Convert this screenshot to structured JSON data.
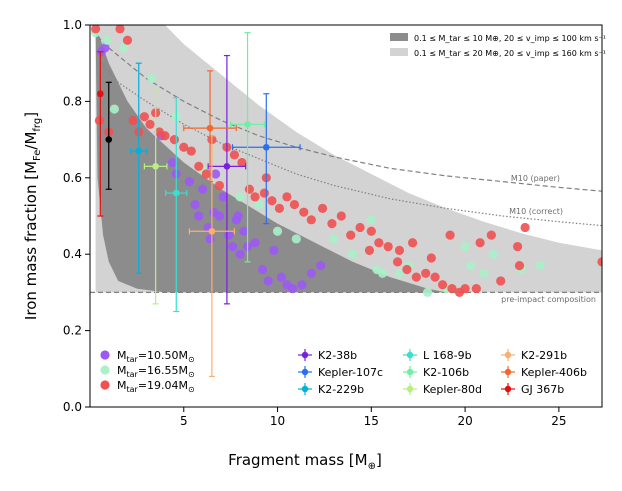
{
  "chart_data": {
    "type": "scatter",
    "xlabel": "Fragment mass [M",
    "xlabel_sub": "⊕",
    "xlabel_end": "]",
    "ylabel": "Iron mass fraction [M",
    "ylabel_sub1": "Fe",
    "ylabel_mid": "/M",
    "ylabel_sub2": "frg",
    "ylabel_end": "]",
    "xlim": [
      0,
      27.3
    ],
    "ylim": [
      0.0,
      1.0
    ],
    "xticks": [
      5,
      10,
      15,
      20,
      25
    ],
    "yticks": [
      0.0,
      0.2,
      0.4,
      0.6,
      0.8,
      1.0
    ],
    "regions": [
      {
        "label": "0.1 ≤ M_tar ≤ 10 M⊕, 20 ≤ v_imp ≤ 100 km s⁻¹",
        "color": "#8c8c8c",
        "upper": [
          [
            0.3,
            0.99
          ],
          [
            0.5,
            0.97
          ],
          [
            1,
            0.9
          ],
          [
            2,
            0.8
          ],
          [
            3,
            0.73
          ],
          [
            5,
            0.64
          ],
          [
            7,
            0.57
          ],
          [
            10,
            0.48
          ],
          [
            12,
            0.43
          ],
          [
            14,
            0.38
          ],
          [
            16,
            0.34
          ],
          [
            18,
            0.31
          ],
          [
            19,
            0.3
          ]
        ],
        "lower": [
          [
            0.3,
            0.98
          ],
          [
            0.4,
            0.6
          ],
          [
            0.7,
            0.45
          ],
          [
            1,
            0.38
          ],
          [
            1.5,
            0.33
          ],
          [
            2.5,
            0.31
          ],
          [
            4,
            0.3
          ],
          [
            19,
            0.3
          ]
        ]
      },
      {
        "label": "0.1 ≤ M_tar ≤ 20 M⊕, 20 ≤ v_imp ≤ 160 km s⁻¹",
        "color": "#d3d3d3",
        "upper": [
          [
            0.3,
            1.0
          ],
          [
            4,
            1.0
          ],
          [
            5,
            0.95
          ],
          [
            7,
            0.87
          ],
          [
            9,
            0.79
          ],
          [
            11,
            0.72
          ],
          [
            13,
            0.66
          ],
          [
            15,
            0.61
          ],
          [
            17,
            0.56
          ],
          [
            19,
            0.52
          ],
          [
            21,
            0.485
          ],
          [
            23,
            0.455
          ],
          [
            25,
            0.43
          ],
          [
            27.3,
            0.41
          ]
        ],
        "lower": [
          [
            0.3,
            0.3
          ],
          [
            27.3,
            0.3
          ]
        ]
      }
    ],
    "curves": [
      {
        "label": "M10 (paper)",
        "style": "dashed",
        "points": [
          [
            0.4,
            0.97
          ],
          [
            1,
            0.94
          ],
          [
            2,
            0.9
          ],
          [
            3,
            0.86
          ],
          [
            5,
            0.8
          ],
          [
            7,
            0.75
          ],
          [
            9,
            0.71
          ],
          [
            11,
            0.68
          ],
          [
            13,
            0.655
          ],
          [
            16,
            0.625
          ],
          [
            19,
            0.605
          ],
          [
            22,
            0.59
          ],
          [
            25,
            0.575
          ],
          [
            27.3,
            0.565
          ]
        ]
      },
      {
        "label": "M10 (correct)",
        "style": "dotted",
        "points": [
          [
            0.6,
            0.9
          ],
          [
            1.5,
            0.85
          ],
          [
            3,
            0.8
          ],
          [
            5,
            0.74
          ],
          [
            7,
            0.69
          ],
          [
            9,
            0.65
          ],
          [
            11,
            0.61
          ],
          [
            13,
            0.58
          ],
          [
            16,
            0.545
          ],
          [
            19,
            0.52
          ],
          [
            22,
            0.5
          ],
          [
            25,
            0.485
          ],
          [
            27.3,
            0.475
          ]
        ]
      },
      {
        "label": "pre-impact composition",
        "style": "dashed",
        "points": [
          [
            0,
            0.3
          ],
          [
            27.3,
            0.3
          ]
        ]
      }
    ],
    "scatter_series": [
      {
        "name": "M_tar=10.50M⊙",
        "label_base": "M",
        "label_sub": "tar",
        "label_val": "=10.50M",
        "label_unit": "⊙",
        "color": "#9b59f5",
        "points": [
          [
            3.8,
            0.71
          ],
          [
            4.4,
            0.64
          ],
          [
            4.6,
            0.61
          ],
          [
            5.3,
            0.59
          ],
          [
            5.6,
            0.53
          ],
          [
            5.8,
            0.5
          ],
          [
            6.0,
            0.57
          ],
          [
            6.3,
            0.47
          ],
          [
            6.4,
            0.44
          ],
          [
            6.6,
            0.51
          ],
          [
            6.9,
            0.5
          ],
          [
            7.1,
            0.55
          ],
          [
            7.4,
            0.45
          ],
          [
            7.6,
            0.42
          ],
          [
            7.8,
            0.49
          ],
          [
            8.0,
            0.4
          ],
          [
            8.2,
            0.46
          ],
          [
            8.4,
            0.42
          ],
          [
            8.8,
            0.43
          ],
          [
            9.2,
            0.36
          ],
          [
            9.5,
            0.33
          ],
          [
            9.8,
            0.41
          ],
          [
            10.2,
            0.34
          ],
          [
            10.5,
            0.32
          ],
          [
            10.8,
            0.31
          ],
          [
            11.3,
            0.32
          ],
          [
            11.8,
            0.35
          ],
          [
            12.3,
            0.37
          ],
          [
            6.7,
            0.61
          ],
          [
            7.9,
            0.5
          ],
          [
            0.6,
            0.93
          ],
          [
            0.8,
            0.94
          ]
        ]
      },
      {
        "name": "M_tar=16.55M⊙",
        "label_base": "M",
        "label_sub": "tar",
        "label_val": "=16.55M",
        "label_unit": "⊙",
        "color": "#aaf0c8",
        "points": [
          [
            0.3,
            0.98
          ],
          [
            0.9,
            0.96
          ],
          [
            1.3,
            0.78
          ],
          [
            1.8,
            0.94
          ],
          [
            3.3,
            0.86
          ],
          [
            4.6,
            0.76
          ],
          [
            6.0,
            0.62
          ],
          [
            8.0,
            0.55
          ],
          [
            9.0,
            0.53
          ],
          [
            10.0,
            0.46
          ],
          [
            11.0,
            0.44
          ],
          [
            13.0,
            0.44
          ],
          [
            14.0,
            0.4
          ],
          [
            15.0,
            0.49
          ],
          [
            15.3,
            0.36
          ],
          [
            15.6,
            0.35
          ],
          [
            16.5,
            0.35
          ],
          [
            17.0,
            0.37
          ],
          [
            18.0,
            0.3
          ],
          [
            19.0,
            0.31
          ],
          [
            20.0,
            0.42
          ],
          [
            20.3,
            0.37
          ],
          [
            21.0,
            0.35
          ],
          [
            21.5,
            0.4
          ],
          [
            23.0,
            0.36
          ],
          [
            24.0,
            0.37
          ]
        ]
      },
      {
        "name": "M_tar=19.04M⊙",
        "label_base": "M",
        "label_sub": "tar",
        "label_val": "=19.04M",
        "label_unit": "⊙",
        "color": "#f05050",
        "points": [
          [
            0.3,
            0.99
          ],
          [
            0.5,
            0.75
          ],
          [
            1.0,
            0.72
          ],
          [
            1.6,
            0.99
          ],
          [
            2.0,
            0.96
          ],
          [
            2.3,
            0.75
          ],
          [
            2.6,
            0.72
          ],
          [
            2.9,
            0.76
          ],
          [
            3.2,
            0.74
          ],
          [
            3.5,
            0.77
          ],
          [
            3.7,
            0.72
          ],
          [
            4.0,
            0.71
          ],
          [
            4.5,
            0.7
          ],
          [
            5.0,
            0.68
          ],
          [
            5.4,
            0.67
          ],
          [
            5.8,
            0.63
          ],
          [
            6.2,
            0.61
          ],
          [
            6.5,
            0.7
          ],
          [
            6.9,
            0.58
          ],
          [
            7.3,
            0.68
          ],
          [
            7.7,
            0.66
          ],
          [
            8.1,
            0.64
          ],
          [
            8.5,
            0.57
          ],
          [
            8.8,
            0.55
          ],
          [
            9.3,
            0.56
          ],
          [
            9.7,
            0.54
          ],
          [
            10.1,
            0.52
          ],
          [
            10.5,
            0.55
          ],
          [
            10.9,
            0.53
          ],
          [
            11.4,
            0.51
          ],
          [
            11.8,
            0.49
          ],
          [
            12.4,
            0.52
          ],
          [
            12.9,
            0.48
          ],
          [
            13.4,
            0.5
          ],
          [
            13.9,
            0.45
          ],
          [
            14.4,
            0.47
          ],
          [
            14.9,
            0.41
          ],
          [
            15.4,
            0.43
          ],
          [
            15.9,
            0.42
          ],
          [
            16.4,
            0.38
          ],
          [
            16.9,
            0.36
          ],
          [
            17.4,
            0.34
          ],
          [
            17.9,
            0.35
          ],
          [
            18.4,
            0.34
          ],
          [
            18.8,
            0.32
          ],
          [
            19.3,
            0.31
          ],
          [
            19.7,
            0.3
          ],
          [
            20.0,
            0.31
          ],
          [
            20.6,
            0.31
          ],
          [
            21.4,
            0.45
          ],
          [
            21.9,
            0.33
          ],
          [
            22.8,
            0.42
          ],
          [
            22.9,
            0.37
          ],
          [
            23.2,
            0.47
          ],
          [
            27.3,
            0.38
          ],
          [
            16.5,
            0.41
          ],
          [
            17.2,
            0.43
          ],
          [
            18.2,
            0.39
          ],
          [
            19.2,
            0.45
          ],
          [
            20.8,
            0.43
          ],
          [
            9.4,
            0.6
          ],
          [
            15.0,
            0.46
          ]
        ]
      }
    ],
    "planets": [
      {
        "name": "K2-38b",
        "color": "#7a1fe0",
        "x": 7.3,
        "y": 0.63,
        "xerr": 1.0,
        "yerr_lo": 0.36,
        "yerr_hi": 0.29
      },
      {
        "name": "Kepler-107c",
        "color": "#2a6fef",
        "x": 9.4,
        "y": 0.68,
        "xerr": 1.8,
        "yerr_lo": 0.2,
        "yerr_hi": 0.14
      },
      {
        "name": "K2-229b",
        "color": "#00b0e0",
        "x": 2.6,
        "y": 0.67,
        "xerr": 0.43,
        "yerr_lo": 0.32,
        "yerr_hi": 0.23
      },
      {
        "name": "L 168-9b",
        "color": "#38e0d0",
        "x": 4.6,
        "y": 0.56,
        "xerr": 0.56,
        "yerr_lo": 0.31,
        "yerr_hi": 0.25
      },
      {
        "name": "K2-106b",
        "color": "#6ef0a0",
        "x": 8.4,
        "y": 0.74,
        "xerr": 0.9,
        "yerr_lo": 0.36,
        "yerr_hi": 0.24
      },
      {
        "name": "Kepler-80d",
        "color": "#b8f080",
        "x": 3.5,
        "y": 0.63,
        "xerr": 0.6,
        "yerr_lo": 0.36,
        "yerr_hi": 0.2
      },
      {
        "name": "K2-291b",
        "color": "#f8b070",
        "x": 6.5,
        "y": 0.46,
        "xerr": 1.2,
        "yerr_lo": 0.38,
        "yerr_hi": 0.25
      },
      {
        "name": "Kepler-406b",
        "color": "#f06830",
        "x": 6.4,
        "y": 0.73,
        "xerr": 1.4,
        "yerr_lo": 0.14,
        "yerr_hi": 0.15
      },
      {
        "name": "GJ 367b",
        "color": "#e01010",
        "x": 0.55,
        "y": 0.82,
        "xerr": 0.08,
        "yerr_lo": 0.32,
        "yerr_hi": 0.11
      },
      {
        "name": "",
        "color": "#000000",
        "x": 1.0,
        "y": 0.7,
        "xerr": 0.0,
        "yerr_lo": 0.13,
        "yerr_hi": 0.15
      }
    ],
    "annotations": {
      "m10_paper": "M10 (paper)",
      "m10_correct": "M10 (correct)",
      "pre_impact": "pre-impact composition"
    }
  }
}
